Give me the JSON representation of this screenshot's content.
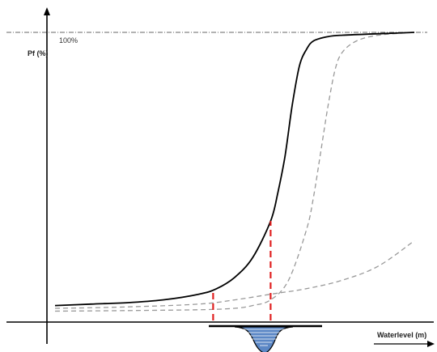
{
  "chart_data": {
    "type": "line",
    "ylabel": "Pf (%)",
    "xlabel": "Waterlevel (m)",
    "reference_line": {
      "label": "100%",
      "value": 1.0,
      "style": "dash-dot"
    },
    "xlim": [
      0,
      10
    ],
    "ylim": [
      0,
      1.05
    ],
    "series": [
      {
        "style": "solid",
        "color": "#000000",
        "x": [
          0,
          1,
          2,
          3,
          4,
          4.5,
          5,
          5.5,
          6,
          6.2,
          6.4,
          6.6,
          6.8,
          7.0,
          7.2,
          7.6,
          8.0,
          9.0,
          10
        ],
        "y": [
          0.03,
          0.035,
          0.04,
          0.05,
          0.07,
          0.09,
          0.13,
          0.2,
          0.33,
          0.43,
          0.56,
          0.74,
          0.88,
          0.94,
          0.97,
          0.985,
          0.99,
          0.995,
          1.0
        ]
      },
      {
        "style": "dashed",
        "color": "#999999",
        "x": [
          0,
          2,
          4,
          5,
          5.5,
          6,
          6.5,
          7,
          7.2,
          7.4,
          7.6,
          7.8,
          8.0,
          8.4,
          9,
          10
        ],
        "y": [
          0.01,
          0.012,
          0.015,
          0.02,
          0.03,
          0.05,
          0.12,
          0.3,
          0.42,
          0.58,
          0.74,
          0.87,
          0.93,
          0.97,
          0.99,
          1.0
        ]
      },
      {
        "style": "dashed",
        "color": "#999999",
        "x": [
          0,
          2,
          4,
          5,
          6,
          7,
          8,
          9,
          10
        ],
        "y": [
          0.02,
          0.025,
          0.035,
          0.05,
          0.07,
          0.09,
          0.12,
          0.17,
          0.26
        ]
      }
    ],
    "markers": [
      {
        "x": 4.4,
        "color": "#e02020",
        "style": "dashed"
      },
      {
        "x": 6.0,
        "color": "#e02020",
        "style": "dashed"
      }
    ],
    "channel_icon": {
      "fill": "#5b87c5",
      "label": ""
    }
  }
}
